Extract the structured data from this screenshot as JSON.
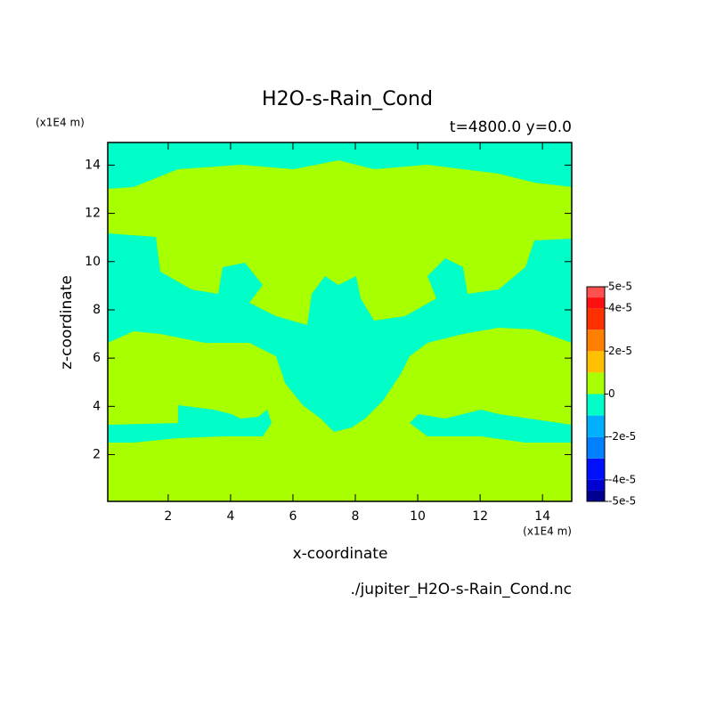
{
  "chart_data": {
    "type": "contour",
    "title": "H2O-s-Rain_Cond",
    "subtitle": "t=4800.0 y=0.0",
    "x_label": "x-coordinate",
    "y_label": "z-coordinate",
    "x_unit": "(x1E4 m)",
    "y_unit": "(x1E4 m)",
    "source": "./jupiter_H2O-s-Rain_Cond.nc",
    "xlim": [
      0.0625,
      14.9375
    ],
    "ylim": [
      0.0625,
      14.9375
    ],
    "xticks": [
      2,
      4,
      6,
      8,
      10,
      12,
      14
    ],
    "yticks": [
      2,
      4,
      6,
      8,
      10,
      12,
      14
    ],
    "colorbar": {
      "levels": [
        -5e-05,
        -4.5e-05,
        -4e-05,
        -3e-05,
        -2e-05,
        -1e-05,
        0,
        1e-05,
        2e-05,
        3e-05,
        4e-05,
        4.5e-05,
        5e-05
      ],
      "colors": [
        "#000090",
        "#0000d0",
        "#0010ff",
        "#0080ff",
        "#00b0ff",
        "#00ffc8",
        "#a8ff00",
        "#ffc000",
        "#ff8000",
        "#ff3000",
        "#ff1010",
        "#ff5050"
      ],
      "ticks": [
        {
          "value": -5e-05,
          "label": "-5e-5"
        },
        {
          "value": -4e-05,
          "label": "-4e-5"
        },
        {
          "value": -2e-05,
          "label": "-2e-5"
        },
        0,
        {
          "value": 2e-05,
          "label": "2e-5"
        },
        {
          "value": 4e-05,
          "label": "4e-5"
        },
        {
          "value": 5e-05,
          "label": "5e-5"
        }
      ]
    }
  }
}
